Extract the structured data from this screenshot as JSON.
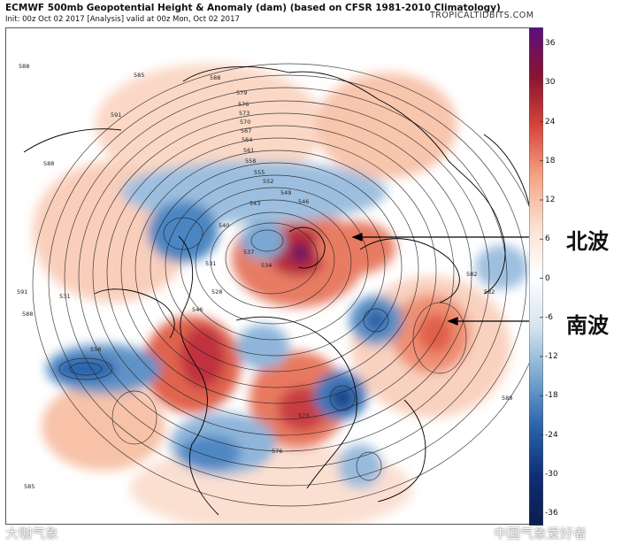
{
  "header": {
    "title": "ECMWF 500mb Geopotential Height & Anomaly (dam) (based on CFSR 1981-2010 Climatology)",
    "subtitle": "Init: 00z Oct 02 2017  [Analysis]  valid at 00z Mon, Oct 02 2017",
    "credit": "TROPICALTIDBITS.COM"
  },
  "colorbar": {
    "ticks": [
      "36",
      "30",
      "24",
      "18",
      "12",
      "6",
      "0",
      "-6",
      "-12",
      "-18",
      "-24",
      "-30",
      "-36"
    ],
    "tick_values": [
      36,
      30,
      24,
      18,
      12,
      6,
      0,
      -6,
      -12,
      -18,
      -24,
      -30,
      -36
    ],
    "colors": {
      "max": "#5a0f7e",
      "deep_red": "#8b1330",
      "red": "#d7463b",
      "orange": "#f4a585",
      "light": "#fbe0d2",
      "neutral": "#ffffff",
      "light_blue": "#d6e4f0",
      "blue": "#7ba8d1",
      "deep_blue": "#2a64ab",
      "navy": "#0f2e75",
      "min": "#0a1d4e"
    }
  },
  "annotations": {
    "north_wave": "北波",
    "south_wave": "南波"
  },
  "contour_labels": [
    "588",
    "585",
    "588",
    "591",
    "588",
    "582",
    "579",
    "576",
    "573",
    "570",
    "567",
    "564",
    "561",
    "558",
    "555",
    "552",
    "549",
    "546",
    "543",
    "540",
    "537",
    "534",
    "531",
    "528",
    "531",
    "546",
    "558",
    "573",
    "576",
    "591",
    "588",
    "582",
    "585",
    "588"
  ],
  "watermarks": {
    "left": "大咖气象",
    "right": "中国气象爱好者"
  }
}
